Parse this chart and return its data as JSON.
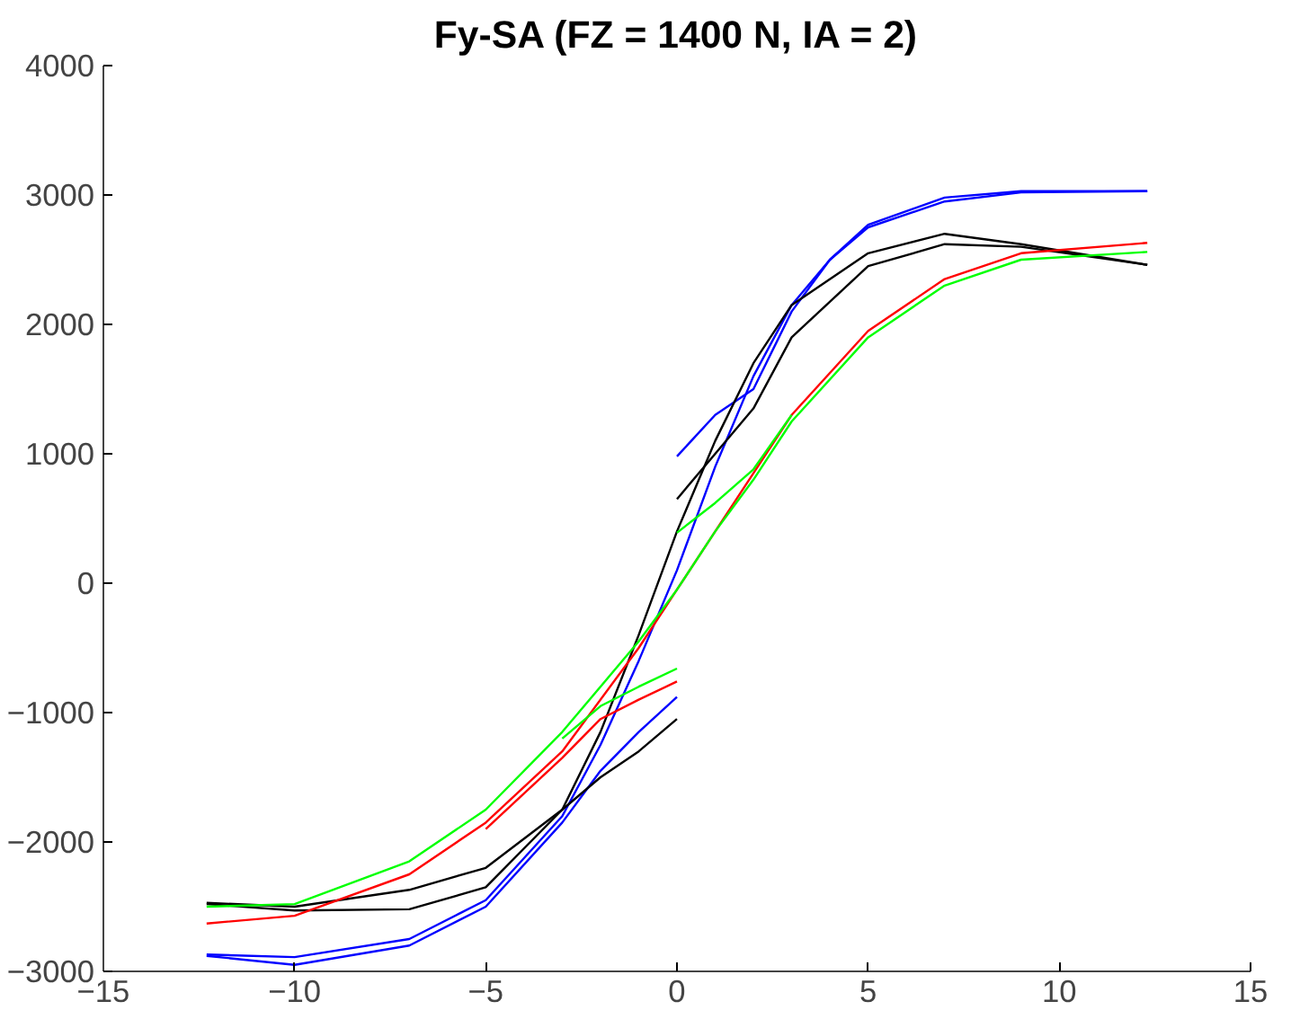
{
  "chart_data": {
    "type": "line",
    "title": "Fy-SA (FZ = 1400 N, IA = 2)",
    "xlim": [
      -15,
      15
    ],
    "xticks": [
      -15,
      -10,
      -5,
      0,
      5,
      10,
      15
    ],
    "ylim": [
      -3000,
      4000
    ],
    "yticks": [
      -3000,
      -2000,
      -1000,
      0,
      1000,
      2000,
      3000,
      4000
    ],
    "grid": false,
    "marker": "none",
    "line_style": "solid",
    "series": [
      {
        "color": "#0000ff",
        "x": [
          -12.3,
          -10,
          -7,
          -5,
          -3,
          -2,
          -1,
          0,
          1,
          2,
          3,
          4,
          5,
          7,
          9,
          12.3
        ],
        "values": [
          -2870,
          -2890,
          -2750,
          -2450,
          -1800,
          -1250,
          -600,
          100,
          900,
          1600,
          2150,
          2500,
          2750,
          2950,
          3020,
          3030
        ]
      },
      {
        "color": "#0000ff",
        "x": [
          -12.3,
          -10,
          -7,
          -5,
          -3,
          -2,
          -1,
          0
        ],
        "values": [
          -2880,
          -2950,
          -2800,
          -2500,
          -1850,
          -1450,
          -1150,
          -880
        ]
      },
      {
        "color": "#0000ff",
        "x": [
          0,
          1,
          2,
          3,
          4,
          5,
          7,
          9,
          12.3
        ],
        "values": [
          980,
          1300,
          1500,
          2100,
          2500,
          2770,
          2980,
          3030,
          3030
        ]
      },
      {
        "color": "#000000",
        "x": [
          -12.3,
          -10,
          -7,
          -5,
          -3,
          -2,
          -1,
          0,
          1,
          2,
          3,
          5,
          7,
          9,
          12.3
        ],
        "values": [
          -2480,
          -2530,
          -2520,
          -2350,
          -1750,
          -1150,
          -400,
          400,
          1100,
          1700,
          2150,
          2550,
          2700,
          2620,
          2460
        ]
      },
      {
        "color": "#000000",
        "x": [
          -12.3,
          -10,
          -7,
          -5,
          -3,
          -2,
          -1,
          0
        ],
        "values": [
          -2470,
          -2500,
          -2370,
          -2200,
          -1750,
          -1500,
          -1300,
          -1050
        ]
      },
      {
        "color": "#000000",
        "x": [
          0,
          1,
          2,
          3,
          5,
          7,
          9,
          12.3
        ],
        "values": [
          650,
          1000,
          1350,
          1900,
          2450,
          2620,
          2600,
          2460
        ]
      },
      {
        "color": "#ff0000",
        "x": [
          -12.3,
          -10,
          -7,
          -5,
          -3,
          -1,
          0,
          1,
          2,
          3,
          5,
          7,
          9,
          12.3
        ],
        "values": [
          -2630,
          -2570,
          -2250,
          -1850,
          -1300,
          -500,
          -50,
          400,
          850,
          1300,
          1950,
          2350,
          2550,
          2630
        ]
      },
      {
        "color": "#ff0000",
        "x": [
          -5,
          -3,
          -2,
          -1,
          0
        ],
        "values": [
          -1900,
          -1350,
          -1050,
          -900,
          -760
        ]
      },
      {
        "color": "#00ff00",
        "x": [
          -12.3,
          -10,
          -7,
          -5,
          -3,
          -1,
          0,
          1,
          2,
          3,
          5,
          7,
          9,
          12.3
        ],
        "values": [
          -2500,
          -2480,
          -2150,
          -1750,
          -1150,
          -450,
          -50,
          400,
          800,
          1250,
          1900,
          2300,
          2500,
          2560
        ]
      },
      {
        "color": "#00ff00",
        "x": [
          0,
          1,
          2,
          3
        ],
        "values": [
          390,
          620,
          880,
          1300
        ]
      },
      {
        "color": "#00ff00",
        "x": [
          -3,
          -2,
          -1,
          0
        ],
        "values": [
          -1200,
          -950,
          -800,
          -660
        ]
      }
    ]
  }
}
